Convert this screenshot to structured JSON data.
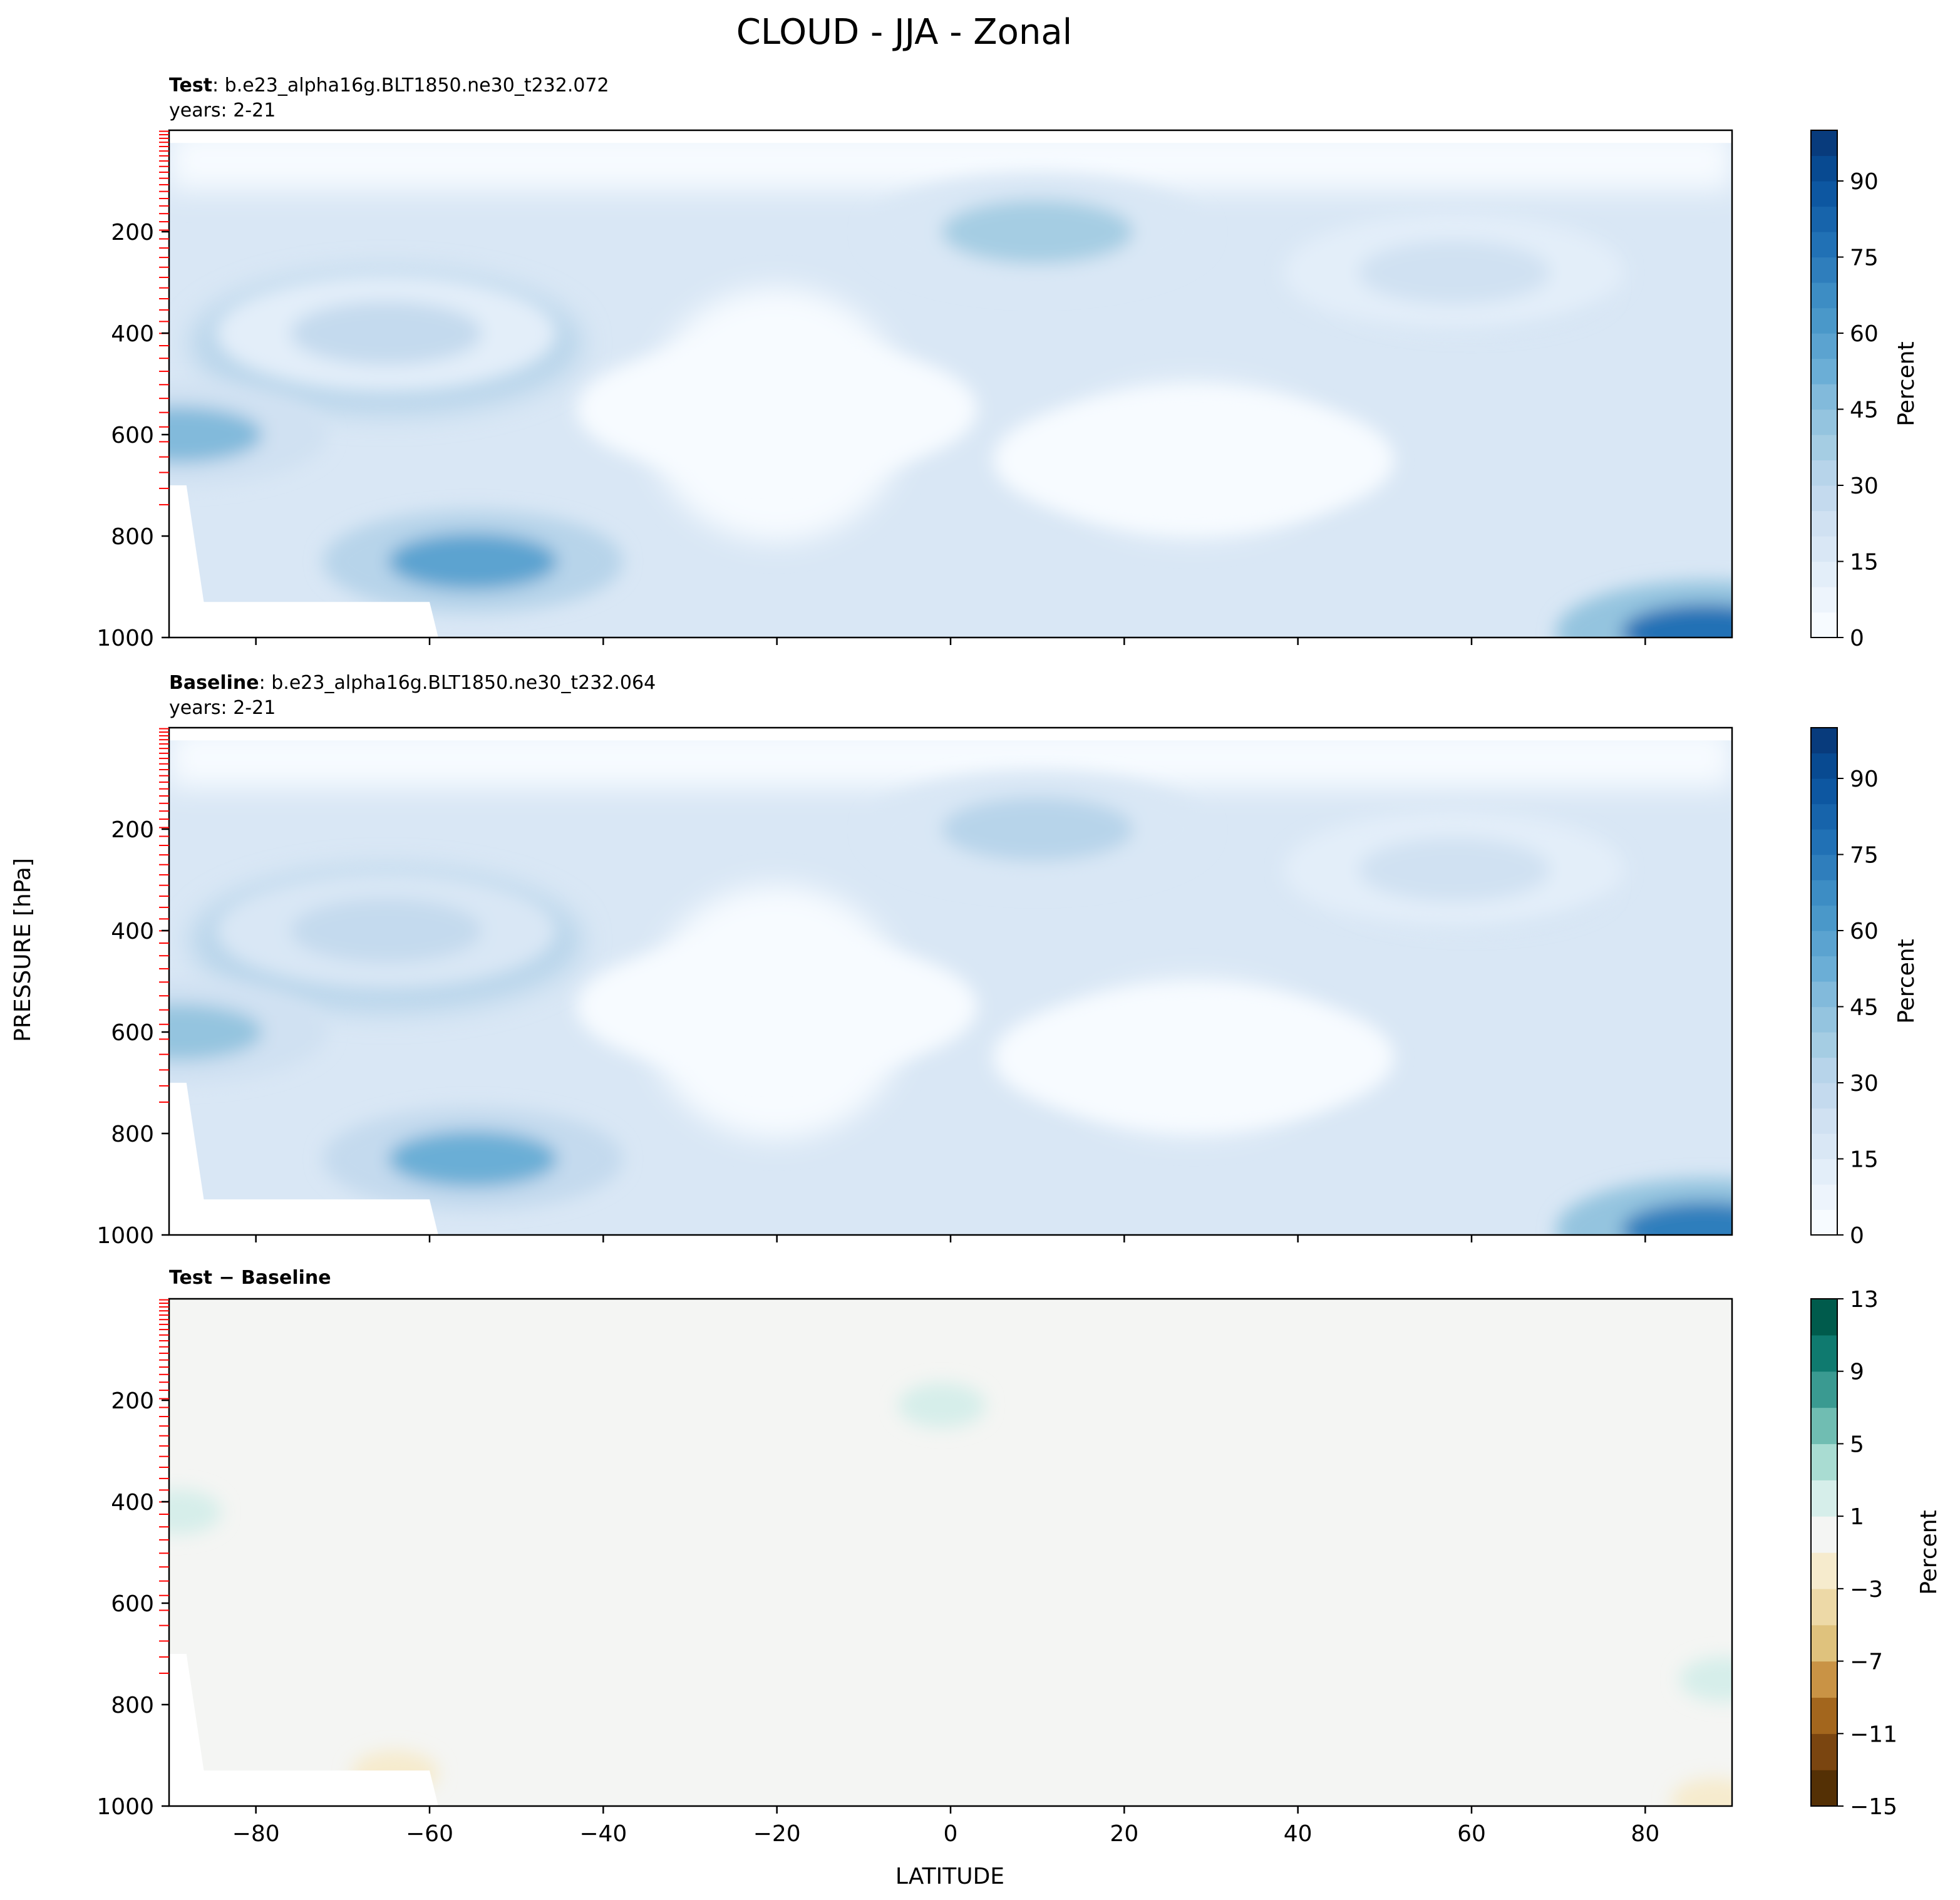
{
  "figure": {
    "title": "CLOUD - JJA - Zonal",
    "xlabel": "LATITUDE",
    "ylabel": "PRESSURE [hPa]"
  },
  "chart_data": [
    {
      "type": "heatmap",
      "panel": "test",
      "label_bold": "Test",
      "label_rest": ": b.e23_alpha16g.BLT1850.ne30_t232.072",
      "years": "years: 2-21",
      "xlim": [
        -90,
        90
      ],
      "ylim": [
        1000,
        0
      ],
      "xticks": [
        -80,
        -60,
        -40,
        -20,
        0,
        20,
        40,
        60,
        80
      ],
      "yticks": [
        200,
        400,
        600,
        800,
        1000
      ],
      "colorbar": {
        "label": "Percent",
        "cmap": "Blues",
        "levels": [
          0,
          5,
          10,
          15,
          20,
          25,
          30,
          35,
          40,
          45,
          50,
          55,
          60,
          65,
          70,
          75,
          80,
          85,
          90,
          95,
          100
        ],
        "ticks": [
          0,
          15,
          30,
          45,
          60,
          75,
          90
        ]
      },
      "features": [
        {
          "lat": -55,
          "p": 850,
          "value": 55
        },
        {
          "lat": 10,
          "p": 200,
          "value": 35
        },
        {
          "lat": -65,
          "p": 400,
          "value": 27
        },
        {
          "lat": 58,
          "p": 280,
          "value": 22
        },
        {
          "lat": 87,
          "p": 990,
          "value": 75
        },
        {
          "lat": 28,
          "p": 650,
          "value": 3
        },
        {
          "lat": -20,
          "p": 550,
          "value": 4
        },
        {
          "lat": -89,
          "p": 600,
          "value": 45
        }
      ]
    },
    {
      "type": "heatmap",
      "panel": "baseline",
      "label_bold": "Baseline",
      "label_rest": ": b.e23_alpha16g.BLT1850.ne30_t232.064",
      "years": "years: 2-21",
      "xlim": [
        -90,
        90
      ],
      "ylim": [
        1000,
        0
      ],
      "xticks": [
        -80,
        -60,
        -40,
        -20,
        0,
        20,
        40,
        60,
        80
      ],
      "yticks": [
        200,
        400,
        600,
        800,
        1000
      ],
      "colorbar": {
        "label": "Percent",
        "cmap": "Blues",
        "levels": [
          0,
          5,
          10,
          15,
          20,
          25,
          30,
          35,
          40,
          45,
          50,
          55,
          60,
          65,
          70,
          75,
          80,
          85,
          90,
          95,
          100
        ],
        "ticks": [
          0,
          15,
          30,
          45,
          60,
          75,
          90
        ]
      },
      "features": [
        {
          "lat": -55,
          "p": 850,
          "value": 54
        },
        {
          "lat": 10,
          "p": 200,
          "value": 34
        },
        {
          "lat": -65,
          "p": 400,
          "value": 28
        },
        {
          "lat": 58,
          "p": 280,
          "value": 22
        },
        {
          "lat": 87,
          "p": 990,
          "value": 74
        },
        {
          "lat": 28,
          "p": 650,
          "value": 3
        },
        {
          "lat": -20,
          "p": 550,
          "value": 4
        },
        {
          "lat": -89,
          "p": 600,
          "value": 44
        }
      ]
    },
    {
      "type": "heatmap",
      "panel": "difference",
      "label": "Test − Baseline",
      "xlim": [
        -90,
        90
      ],
      "ylim": [
        1000,
        0
      ],
      "xticks": [
        -80,
        -60,
        -40,
        -20,
        0,
        20,
        40,
        60,
        80
      ],
      "yticks": [
        200,
        400,
        600,
        800,
        1000
      ],
      "colorbar": {
        "label": "Percent",
        "cmap": "BrBG",
        "levels": [
          -15,
          -13,
          -11,
          -9,
          -7,
          -5,
          -3,
          -1,
          1,
          3,
          5,
          7,
          9,
          11,
          13
        ],
        "ticks": [
          -15,
          -11,
          -7,
          -3,
          1,
          5,
          9,
          13
        ]
      },
      "background_value": 0,
      "features": [
        {
          "lat": -1,
          "p": 210,
          "value": 2
        },
        {
          "lat": -89,
          "p": 420,
          "value": 2
        },
        {
          "lat": 89,
          "p": 750,
          "value": 2
        },
        {
          "lat": 88,
          "p": 990,
          "value": -2
        },
        {
          "lat": -64,
          "p": 935,
          "value": -2
        }
      ]
    }
  ],
  "colors": {
    "blues": [
      "#f7fbff",
      "#edf4fc",
      "#e3eef9",
      "#d9e7f5",
      "#d0e1f2",
      "#c4daee",
      "#b7d4ea",
      "#a5cde3",
      "#94c4df",
      "#82badb",
      "#6baed6",
      "#5ba3d0",
      "#4a98c9",
      "#3d8dc4",
      "#2f7ebc",
      "#2171b5",
      "#1764ab",
      "#0d57a1",
      "#084a91",
      "#083b7c"
    ],
    "brbg": [
      "#543005",
      "#7a4510",
      "#a3661d",
      "#c99345",
      "#dfc27d",
      "#edd9a7",
      "#f6ebcd",
      "#f4f5f3",
      "#d6eeea",
      "#a9dcd2",
      "#70bdb2",
      "#3a9a91",
      "#0f7a6f",
      "#005b4c"
    ],
    "neutral": "#f4f5f3",
    "tick_red": "#ff0000"
  }
}
